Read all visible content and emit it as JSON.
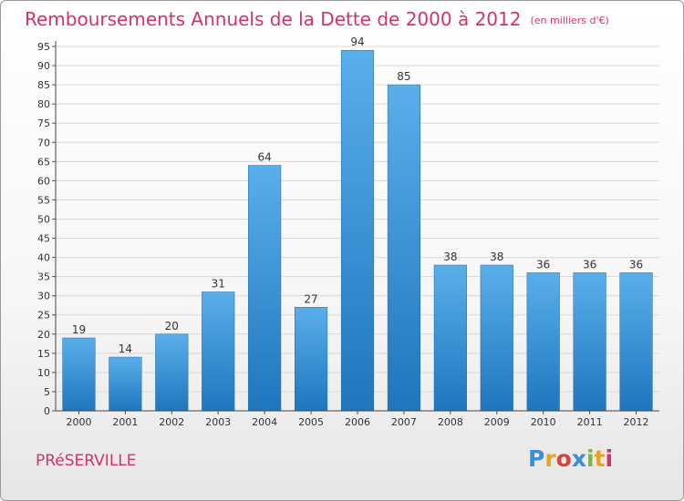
{
  "header": {
    "title": "Remboursements Annuels de la Dette de 2000 à 2012",
    "unit": "(en milliers d'€)"
  },
  "footer": {
    "town": "PRéSERVILLE",
    "logo_letters": [
      "P",
      "r",
      "o",
      "x",
      "i",
      "t",
      "i"
    ],
    "logo_colors": [
      "#3a8fd6",
      "#e8a21b",
      "#d9433b",
      "#3a8fd6",
      "#7bb83a",
      "#e8a21b",
      "#d4326a"
    ]
  },
  "chart_data": {
    "type": "bar",
    "title": "Remboursements Annuels de la Dette de 2000 à 2012",
    "categories": [
      "2000",
      "2001",
      "2002",
      "2003",
      "2004",
      "2005",
      "2006",
      "2007",
      "2008",
      "2009",
      "2010",
      "2011",
      "2012"
    ],
    "values": [
      19,
      14,
      20,
      31,
      64,
      27,
      94,
      85,
      38,
      38,
      36,
      36,
      36
    ],
    "ylim": [
      0,
      95
    ],
    "yticks": [
      0,
      5,
      10,
      15,
      20,
      25,
      30,
      35,
      40,
      45,
      50,
      55,
      60,
      65,
      70,
      75,
      80,
      85,
      90,
      95
    ],
    "grid": true,
    "bar_color": "#3a8fd6",
    "xlabel": "",
    "ylabel": ""
  }
}
